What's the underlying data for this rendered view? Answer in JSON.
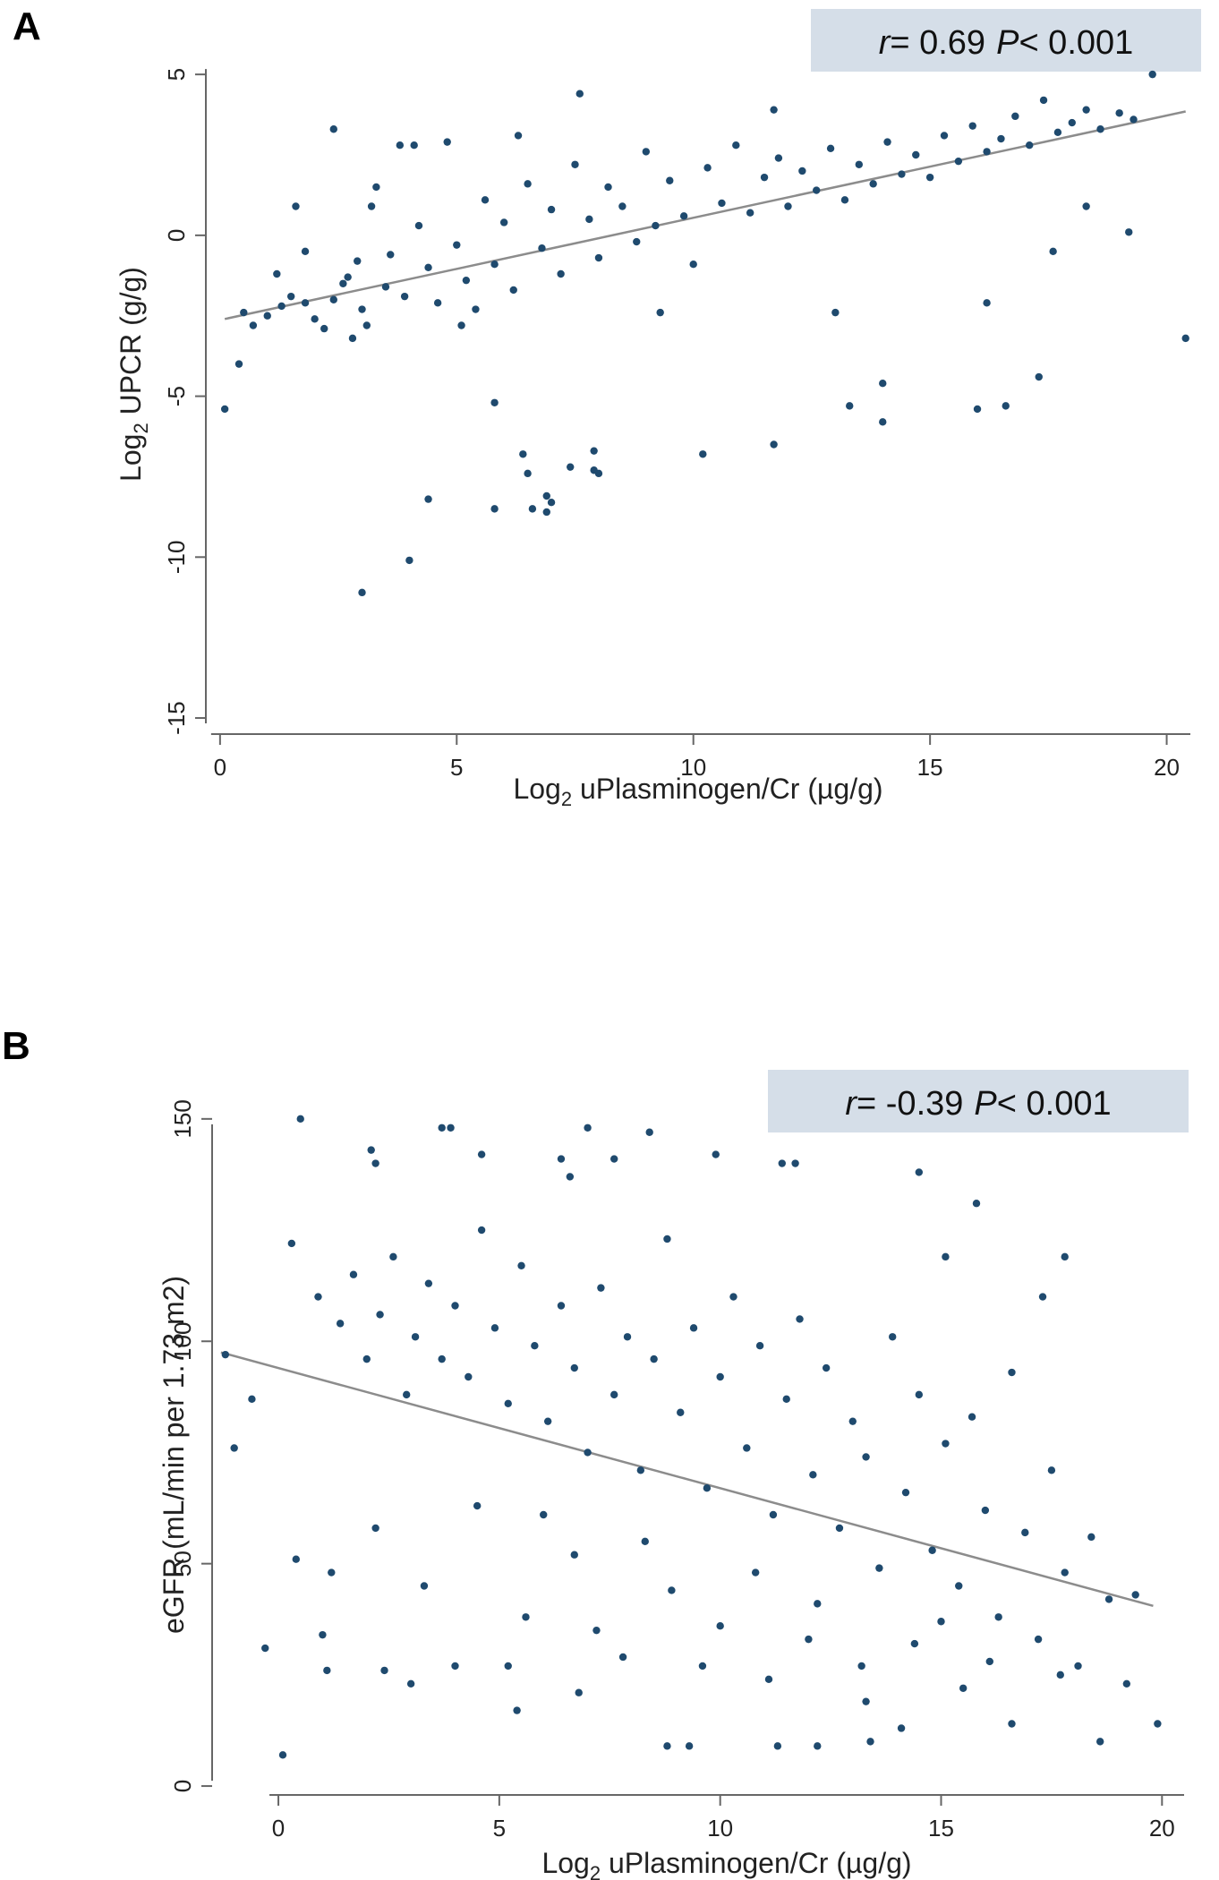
{
  "chart_data": [
    {
      "type": "scatter",
      "panel_label": "A",
      "xlabel_main": "Log",
      "xlabel_sub": "2",
      "xlabel_rest": " uPlasminogen/Cr (µg/g)",
      "ylabel_main": "Log",
      "ylabel_sub": "2",
      "ylabel_rest": " UPCR (g/g)",
      "annotation": {
        "r_symbol": "r",
        "r_value": "= 0.69",
        "p_symbol": "P",
        "p_value": "< 0.001"
      },
      "xlim": [
        -0.3,
        20.5
      ],
      "ylim": [
        -15.5,
        6.2
      ],
      "xticks": [
        0,
        5,
        10,
        15,
        20
      ],
      "xtick_labels": [
        "0",
        "5",
        "10",
        "15",
        "20"
      ],
      "yticks": [
        5,
        0,
        -5,
        -10,
        -15
      ],
      "ytick_labels": [
        "5",
        "0",
        "-5",
        "-10",
        "-15"
      ],
      "ytick_rotation": "vertical",
      "grid": false,
      "point_color": "#1f4a6e",
      "line_color": "#8c8c8c",
      "annotation_bg": "#d5dee8",
      "fit_line": {
        "x": [
          0.1,
          20.4
        ],
        "y": [
          -2.6,
          3.85
        ]
      },
      "point_count_approx": 1100,
      "points": [
        [
          0.1,
          -5.4
        ],
        [
          0.4,
          -4.0
        ],
        [
          0.5,
          -2.4
        ],
        [
          0.7,
          -2.8
        ],
        [
          1.0,
          -2.5
        ],
        [
          1.3,
          -2.2
        ],
        [
          1.5,
          -1.9
        ],
        [
          1.8,
          -2.1
        ],
        [
          2.0,
          -2.6
        ],
        [
          2.2,
          -2.9
        ],
        [
          2.4,
          -2.0
        ],
        [
          2.6,
          -1.5
        ],
        [
          1.6,
          0.9
        ],
        [
          1.8,
          -0.5
        ],
        [
          2.4,
          3.3
        ],
        [
          2.7,
          -1.3
        ],
        [
          2.9,
          -0.8
        ],
        [
          3.0,
          -2.3
        ],
        [
          3.1,
          -2.8
        ],
        [
          3.3,
          1.5
        ],
        [
          3.5,
          -1.6
        ],
        [
          3.6,
          -0.6
        ],
        [
          3.8,
          2.8
        ],
        [
          3.9,
          -1.9
        ],
        [
          4.1,
          2.8
        ],
        [
          4.2,
          0.3
        ],
        [
          4.4,
          -1.0
        ],
        [
          4.6,
          -2.1
        ],
        [
          4.8,
          2.9
        ],
        [
          5.0,
          -0.3
        ],
        [
          5.2,
          -1.4
        ],
        [
          5.4,
          -2.3
        ],
        [
          5.6,
          1.1
        ],
        [
          5.8,
          -0.9
        ],
        [
          6.0,
          0.4
        ],
        [
          6.2,
          -1.7
        ],
        [
          6.5,
          1.6
        ],
        [
          6.8,
          -0.4
        ],
        [
          7.0,
          0.8
        ],
        [
          7.2,
          -1.2
        ],
        [
          7.5,
          2.2
        ],
        [
          7.8,
          0.5
        ],
        [
          8.0,
          -0.7
        ],
        [
          8.2,
          1.5
        ],
        [
          8.5,
          0.9
        ],
        [
          8.8,
          -0.2
        ],
        [
          9.0,
          2.6
        ],
        [
          9.2,
          0.3
        ],
        [
          9.5,
          1.7
        ],
        [
          9.8,
          0.6
        ],
        [
          10.0,
          -0.9
        ],
        [
          10.3,
          2.1
        ],
        [
          10.6,
          1.0
        ],
        [
          10.9,
          2.8
        ],
        [
          11.2,
          0.7
        ],
        [
          11.5,
          1.8
        ],
        [
          11.8,
          2.4
        ],
        [
          12.0,
          0.9
        ],
        [
          12.3,
          2.0
        ],
        [
          12.6,
          1.4
        ],
        [
          12.9,
          2.7
        ],
        [
          13.2,
          1.1
        ],
        [
          13.5,
          2.2
        ],
        [
          13.8,
          1.6
        ],
        [
          14.1,
          2.9
        ],
        [
          14.4,
          1.9
        ],
        [
          14.7,
          2.5
        ],
        [
          15.0,
          1.8
        ],
        [
          15.3,
          3.1
        ],
        [
          15.6,
          2.3
        ],
        [
          15.9,
          3.4
        ],
        [
          16.2,
          2.6
        ],
        [
          16.5,
          3.0
        ],
        [
          16.8,
          3.7
        ],
        [
          17.1,
          2.8
        ],
        [
          17.4,
          4.2
        ],
        [
          17.7,
          3.2
        ],
        [
          18.0,
          3.5
        ],
        [
          18.3,
          3.9
        ],
        [
          18.6,
          3.3
        ],
        [
          19.0,
          3.8
        ],
        [
          19.3,
          3.6
        ],
        [
          19.7,
          5.0
        ],
        [
          7.6,
          4.4
        ],
        [
          11.7,
          3.9
        ],
        [
          6.3,
          3.1
        ],
        [
          3.2,
          0.9
        ],
        [
          1.2,
          -1.2
        ],
        [
          2.8,
          -3.2
        ],
        [
          5.1,
          -2.8
        ],
        [
          9.3,
          -2.4
        ],
        [
          13.0,
          -2.4
        ],
        [
          16.2,
          -2.1
        ],
        [
          17.6,
          -0.5
        ],
        [
          18.3,
          0.9
        ],
        [
          19.2,
          0.1
        ],
        [
          20.4,
          -3.2
        ],
        [
          5.8,
          -5.2
        ],
        [
          17.3,
          -4.4
        ],
        [
          14.0,
          -4.6
        ],
        [
          13.3,
          -5.3
        ],
        [
          14.0,
          -5.8
        ],
        [
          16.0,
          -5.4
        ],
        [
          16.6,
          -5.3
        ],
        [
          10.2,
          -6.8
        ],
        [
          11.7,
          -6.5
        ],
        [
          6.4,
          -6.8
        ],
        [
          6.5,
          -7.4
        ],
        [
          7.4,
          -7.2
        ],
        [
          7.9,
          -6.7
        ],
        [
          8.0,
          -7.4
        ],
        [
          7.9,
          -7.3
        ],
        [
          6.9,
          -8.1
        ],
        [
          7.0,
          -8.3
        ],
        [
          6.9,
          -8.6
        ],
        [
          6.6,
          -8.5
        ],
        [
          5.8,
          -8.5
        ],
        [
          4.4,
          -8.2
        ],
        [
          4.0,
          -10.1
        ],
        [
          3.0,
          -11.1
        ]
      ]
    },
    {
      "type": "scatter",
      "panel_label": "B",
      "xlabel_main": "Log",
      "xlabel_sub": "2",
      "xlabel_rest": " uPlasminogen/Cr (µg/g)",
      "ylabel": "eGFR (mL/min per 1.73 m2)",
      "annotation": {
        "r_symbol": "r",
        "r_value": "= -0.39",
        "p_symbol": "P",
        "p_value": "< 0.001"
      },
      "xlim": [
        -1.5,
        20.5
      ],
      "ylim": [
        -2,
        155
      ],
      "xticks": [
        0,
        5,
        10,
        15,
        20
      ],
      "xtick_labels": [
        "0",
        "5",
        "10",
        "15",
        "20"
      ],
      "yticks": [
        0,
        50,
        100,
        150
      ],
      "ytick_labels": [
        "0",
        "50",
        "100",
        "150"
      ],
      "ytick_rotation": "vertical",
      "grid": false,
      "point_color": "#1f4a6e",
      "line_color": "#8c8c8c",
      "annotation_bg": "#d5dee8",
      "fit_line": {
        "x": [
          -1.3,
          19.8
        ],
        "y": [
          97.5,
          40.5
        ]
      },
      "point_count_approx": 1000,
      "points": [
        [
          -1.2,
          97
        ],
        [
          -1.0,
          76
        ],
        [
          -0.3,
          31
        ],
        [
          0.1,
          7
        ],
        [
          0.5,
          150
        ],
        [
          2.1,
          143
        ],
        [
          2.2,
          140
        ],
        [
          3.7,
          148
        ],
        [
          3.9,
          148
        ],
        [
          4.6,
          142
        ],
        [
          6.4,
          141
        ],
        [
          6.6,
          137
        ],
        [
          7.0,
          148
        ],
        [
          7.6,
          141
        ],
        [
          8.4,
          147
        ],
        [
          9.9,
          142
        ],
        [
          11.4,
          140
        ],
        [
          11.7,
          140
        ],
        [
          14.5,
          138
        ],
        [
          15.8,
          131
        ],
        [
          15.1,
          119
        ],
        [
          17.3,
          110
        ],
        [
          17.8,
          119
        ],
        [
          19.9,
          14
        ],
        [
          18.6,
          10
        ],
        [
          19.2,
          23
        ],
        [
          8.8,
          9
        ],
        [
          9.3,
          9
        ],
        [
          11.3,
          9
        ],
        [
          12.2,
          9
        ],
        [
          13.4,
          10
        ],
        [
          0.4,
          51
        ],
        [
          1.0,
          34
        ],
        [
          1.1,
          26
        ],
        [
          2.4,
          26
        ],
        [
          3.0,
          23
        ],
        [
          4.0,
          27
        ],
        [
          5.4,
          17
        ],
        [
          5.2,
          27
        ],
        [
          6.8,
          21
        ],
        [
          -0.6,
          87
        ],
        [
          0.3,
          122
        ],
        [
          0.9,
          110
        ],
        [
          1.4,
          104
        ],
        [
          1.7,
          115
        ],
        [
          2.0,
          96
        ],
        [
          2.3,
          106
        ],
        [
          2.6,
          119
        ],
        [
          2.9,
          88
        ],
        [
          3.1,
          101
        ],
        [
          3.4,
          113
        ],
        [
          3.7,
          96
        ],
        [
          4.0,
          108
        ],
        [
          4.3,
          92
        ],
        [
          4.6,
          125
        ],
        [
          4.9,
          103
        ],
        [
          5.2,
          86
        ],
        [
          5.5,
          117
        ],
        [
          5.8,
          99
        ],
        [
          6.1,
          82
        ],
        [
          6.4,
          108
        ],
        [
          6.7,
          94
        ],
        [
          7.0,
          75
        ],
        [
          7.3,
          112
        ],
        [
          7.6,
          88
        ],
        [
          7.9,
          101
        ],
        [
          8.2,
          71
        ],
        [
          8.5,
          96
        ],
        [
          8.8,
          123
        ],
        [
          9.1,
          84
        ],
        [
          9.4,
          103
        ],
        [
          9.7,
          67
        ],
        [
          10.0,
          92
        ],
        [
          10.3,
          110
        ],
        [
          10.6,
          76
        ],
        [
          10.9,
          99
        ],
        [
          11.2,
          61
        ],
        [
          11.5,
          87
        ],
        [
          11.8,
          105
        ],
        [
          12.1,
          70
        ],
        [
          12.4,
          94
        ],
        [
          12.7,
          58
        ],
        [
          13.0,
          82
        ],
        [
          13.3,
          74
        ],
        [
          13.6,
          49
        ],
        [
          13.9,
          101
        ],
        [
          14.2,
          66
        ],
        [
          14.5,
          88
        ],
        [
          14.8,
          53
        ],
        [
          15.1,
          77
        ],
        [
          15.4,
          45
        ],
        [
          15.7,
          83
        ],
        [
          16.0,
          62
        ],
        [
          16.3,
          38
        ],
        [
          16.6,
          93
        ],
        [
          16.9,
          57
        ],
        [
          17.2,
          33
        ],
        [
          17.5,
          71
        ],
        [
          17.8,
          48
        ],
        [
          18.1,
          27
        ],
        [
          18.4,
          56
        ],
        [
          18.8,
          42
        ],
        [
          19.4,
          43
        ],
        [
          1.2,
          48
        ],
        [
          2.2,
          58
        ],
        [
          3.3,
          45
        ],
        [
          4.5,
          63
        ],
        [
          5.6,
          38
        ],
        [
          6.7,
          52
        ],
        [
          7.8,
          29
        ],
        [
          8.9,
          44
        ],
        [
          10.0,
          36
        ],
        [
          11.1,
          24
        ],
        [
          12.2,
          41
        ],
        [
          13.3,
          19
        ],
        [
          14.4,
          32
        ],
        [
          15.5,
          22
        ],
        [
          16.6,
          14
        ],
        [
          17.7,
          25
        ],
        [
          6.0,
          61
        ],
        [
          7.2,
          35
        ],
        [
          8.3,
          55
        ],
        [
          9.6,
          27
        ],
        [
          10.8,
          48
        ],
        [
          12.0,
          33
        ],
        [
          13.2,
          27
        ],
        [
          14.1,
          13
        ],
        [
          15.0,
          37
        ],
        [
          16.1,
          28
        ]
      ]
    }
  ]
}
